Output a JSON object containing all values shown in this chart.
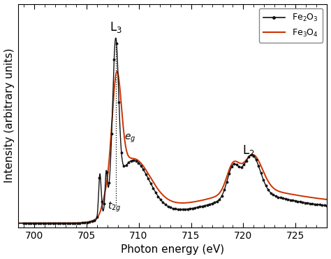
{
  "xlabel": "Photon energy (eV)",
  "ylabel": "Intensity (arbitrary units)",
  "xmin": 698.5,
  "xmax": 728,
  "annotation_L3": "L$_3$",
  "annotation_L2": "L$_2$",
  "line_color_fe2o3": "#111111",
  "line_color_fe3o4": "#cc3300",
  "marker_color": "#111111",
  "background_color": "#ffffff",
  "xticks": [
    700,
    705,
    710,
    715,
    720,
    725
  ],
  "title_fontsize": 11,
  "axis_fontsize": 11,
  "legend_fontsize": 9
}
